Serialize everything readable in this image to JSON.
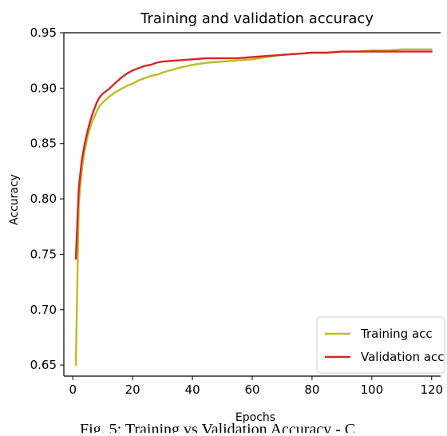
{
  "chart_data": {
    "type": "line",
    "title": "Training and validation accuracy",
    "xlabel": "Epochs",
    "ylabel": "Accuracy",
    "xlim": [
      -3,
      123
    ],
    "ylim": [
      0.64,
      0.95
    ],
    "xticks": [
      0,
      20,
      40,
      60,
      80,
      100,
      120
    ],
    "yticks": [
      0.65,
      0.7,
      0.75,
      0.8,
      0.85,
      0.9,
      0.95
    ],
    "xtick_labels": [
      "0",
      "20",
      "40",
      "60",
      "80",
      "100",
      "120"
    ],
    "ytick_labels": [
      "0.65",
      "0.70",
      "0.75",
      "0.80",
      "0.85",
      "0.90",
      "0.95"
    ],
    "legend_position": "bottom-right",
    "grid": false,
    "series": [
      {
        "name": "Training acc",
        "color": "#bcbd22",
        "x": [
          1,
          2,
          3,
          4,
          5,
          6,
          7,
          8,
          9,
          10,
          12,
          14,
          16,
          18,
          20,
          22,
          24,
          26,
          28,
          30,
          35,
          40,
          45,
          50,
          55,
          60,
          65,
          70,
          75,
          80,
          85,
          90,
          95,
          100,
          105,
          110,
          115,
          120
        ],
        "y": [
          0.65,
          0.795,
          0.826,
          0.844,
          0.857,
          0.866,
          0.873,
          0.879,
          0.884,
          0.887,
          0.892,
          0.896,
          0.899,
          0.902,
          0.904,
          0.907,
          0.909,
          0.911,
          0.912,
          0.914,
          0.918,
          0.921,
          0.923,
          0.924,
          0.925,
          0.926,
          0.928,
          0.93,
          0.931,
          0.932,
          0.932,
          0.933,
          0.933,
          0.934,
          0.934,
          0.935,
          0.935,
          0.935
        ]
      },
      {
        "name": "Validation acc",
        "color": "#d62728",
        "x": [
          1,
          2,
          3,
          4,
          5,
          6,
          7,
          8,
          9,
          10,
          12,
          14,
          16,
          18,
          20,
          22,
          24,
          26,
          28,
          30,
          35,
          40,
          45,
          50,
          55,
          60,
          65,
          70,
          75,
          80,
          85,
          90,
          95,
          100,
          105,
          110,
          115,
          120
        ],
        "y": [
          0.746,
          0.81,
          0.835,
          0.85,
          0.862,
          0.872,
          0.88,
          0.887,
          0.892,
          0.895,
          0.899,
          0.904,
          0.909,
          0.913,
          0.916,
          0.918,
          0.92,
          0.921,
          0.923,
          0.924,
          0.925,
          0.926,
          0.927,
          0.927,
          0.927,
          0.928,
          0.929,
          0.93,
          0.931,
          0.932,
          0.932,
          0.933,
          0.933,
          0.933,
          0.933,
          0.933,
          0.933,
          0.933
        ]
      }
    ]
  },
  "caption": {
    "text": "Fig. 5: Training vs Validation Accuracy - C"
  }
}
